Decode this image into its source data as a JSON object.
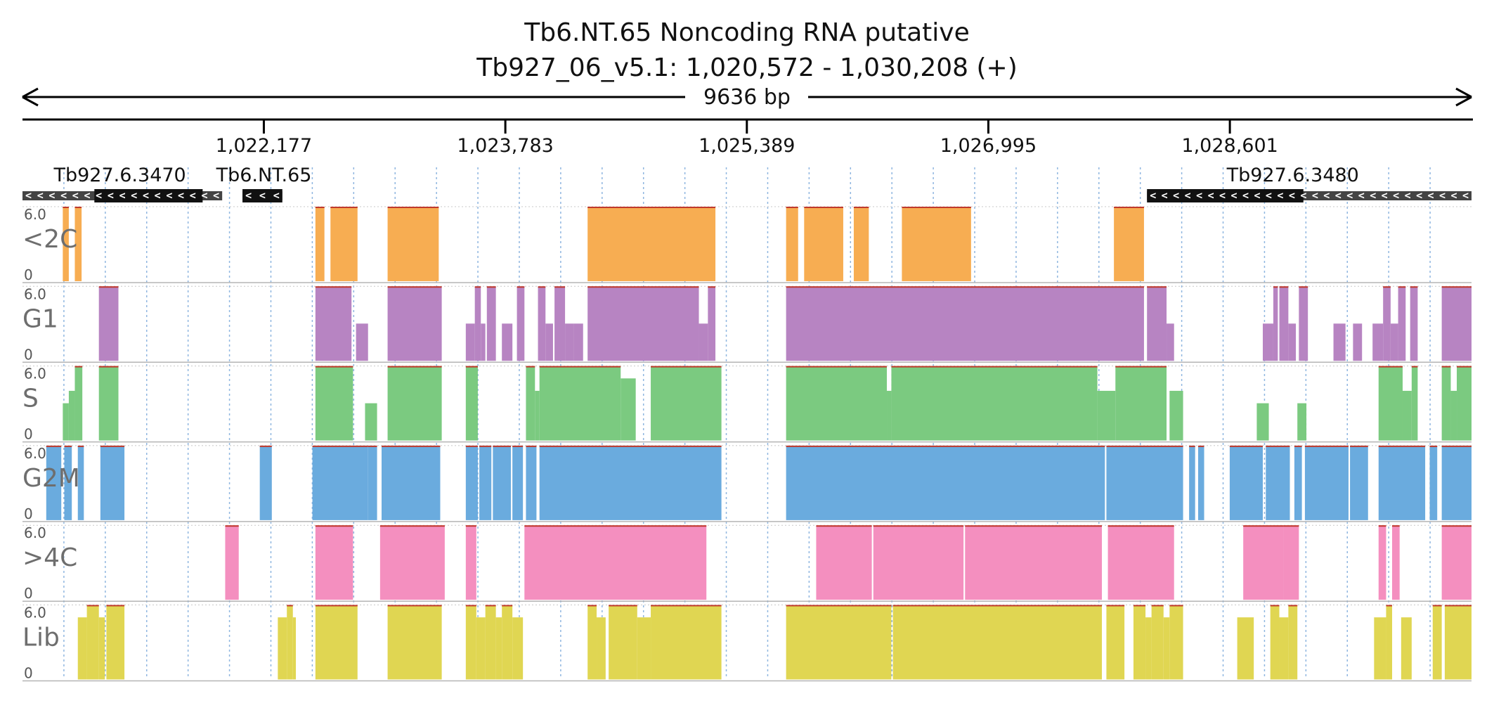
{
  "colors": {
    "<2C": "#f7ad52",
    "G1": "#b784c2",
    "S": "#7bca80",
    "G2M": "#6aabde",
    ">4C": "#f48fbf",
    "Lib": "#e0d652",
    "topline": "#c0392b",
    "gene_fill": "#111111",
    "gene_utr": "#444444"
  },
  "chart_data": {
    "type": "area",
    "title_line1": "Tb6.NT.65  Noncoding RNA  putative",
    "title_line2": "Tb927_06_v5.1: 1,020,572 - 1,030,208 (+)",
    "span_label": "9636 bp",
    "region": {
      "chrom": "Tb927_06_v5.1",
      "start": 1020572,
      "end": 1030208,
      "strand": "+"
    },
    "ticks": [
      {
        "pos": 1022177,
        "label": "1,022,177"
      },
      {
        "pos": 1023783,
        "label": "1,023,783"
      },
      {
        "pos": 1025389,
        "label": "1,025,389"
      },
      {
        "pos": 1026995,
        "label": "1,026,995"
      },
      {
        "pos": 1028601,
        "label": "1,028,601"
      }
    ],
    "genes": [
      {
        "name": "Tb927.6.3470",
        "start": 1020572,
        "end": 1021900,
        "cds_start": 1021050,
        "cds_end": 1021770,
        "strand": "-",
        "label": "Tb927.6.3470",
        "label_pos": 1020780
      },
      {
        "name": "Tb6.NT.65",
        "start": 1022035,
        "end": 1022300,
        "cds_start": 1022035,
        "cds_end": 1022300,
        "strand": "-",
        "label": "Tb6.NT.65",
        "label_pos": 1021860
      },
      {
        "name": "Tb927.6.3480",
        "start": 1028050,
        "end": 1030208,
        "cds_start": 1028050,
        "cds_end": 1029090,
        "strand": "-",
        "label": "Tb927.6.3480",
        "label_pos": 1028580
      }
    ],
    "y_scale": {
      "max_label": "6.0",
      "min_label": "0",
      "ylim": [
        0,
        6
      ]
    },
    "tracks": [
      {
        "name": "<2C",
        "segments": [
          [
            1020840,
            1020880,
            6.0
          ],
          [
            1020920,
            1020965,
            6.0
          ],
          [
            1022520,
            1022580,
            6.0
          ],
          [
            1022620,
            1022800,
            6.0
          ],
          [
            1023000,
            1023340,
            6.0
          ],
          [
            1024330,
            1025180,
            6.0
          ],
          [
            1025650,
            1025730,
            6.0
          ],
          [
            1025770,
            1026030,
            6.0
          ],
          [
            1026100,
            1026200,
            6.0
          ],
          [
            1026420,
            1026880,
            6.0
          ],
          [
            1027830,
            1028030,
            6.0
          ]
        ]
      },
      {
        "name": "G1",
        "segments": [
          [
            1021080,
            1021210,
            6.0
          ],
          [
            1022520,
            1022760,
            6.0
          ],
          [
            1022790,
            1022870,
            3.0
          ],
          [
            1023000,
            1023360,
            6.0
          ],
          [
            1023520,
            1023580,
            3.0
          ],
          [
            1023580,
            1023620,
            6.0
          ],
          [
            1023620,
            1023650,
            3.0
          ],
          [
            1023660,
            1023720,
            6.0
          ],
          [
            1023760,
            1023830,
            3.0
          ],
          [
            1023860,
            1023910,
            6.0
          ],
          [
            1024000,
            1024050,
            6.0
          ],
          [
            1024050,
            1024100,
            3.0
          ],
          [
            1024110,
            1024180,
            6.0
          ],
          [
            1024180,
            1024240,
            3.0
          ],
          [
            1024240,
            1024300,
            3.0
          ],
          [
            1024330,
            1025070,
            6.0
          ],
          [
            1025070,
            1025130,
            3.0
          ],
          [
            1025130,
            1025180,
            6.0
          ],
          [
            1025650,
            1028030,
            6.0
          ],
          [
            1028050,
            1028180,
            6.0
          ],
          [
            1028180,
            1028230,
            3.0
          ],
          [
            1028820,
            1028890,
            3.0
          ],
          [
            1028890,
            1028920,
            6.0
          ],
          [
            1028930,
            1028990,
            6.0
          ],
          [
            1028990,
            1029040,
            3.0
          ],
          [
            1029060,
            1029120,
            6.0
          ],
          [
            1029290,
            1029370,
            3.0
          ],
          [
            1029420,
            1029480,
            3.0
          ],
          [
            1029550,
            1029620,
            3.0
          ],
          [
            1029620,
            1029670,
            6.0
          ],
          [
            1029670,
            1029720,
            3.0
          ],
          [
            1029720,
            1029770,
            6.0
          ],
          [
            1029800,
            1029850,
            6.0
          ],
          [
            1030010,
            1030208,
            6.0
          ]
        ]
      },
      {
        "name": "S",
        "segments": [
          [
            1020840,
            1020880,
            3.0
          ],
          [
            1020880,
            1020920,
            4.0
          ],
          [
            1020920,
            1020970,
            6.0
          ],
          [
            1021080,
            1021210,
            6.0
          ],
          [
            1022520,
            1022770,
            6.0
          ],
          [
            1022850,
            1022930,
            3.0
          ],
          [
            1023000,
            1023360,
            6.0
          ],
          [
            1023520,
            1023600,
            6.0
          ],
          [
            1023920,
            1023980,
            6.0
          ],
          [
            1023980,
            1024010,
            4.0
          ],
          [
            1024010,
            1024550,
            6.0
          ],
          [
            1024550,
            1024650,
            5.0
          ],
          [
            1024750,
            1025220,
            6.0
          ],
          [
            1025650,
            1026320,
            6.0
          ],
          [
            1026320,
            1026350,
            4.0
          ],
          [
            1026350,
            1027720,
            6.0
          ],
          [
            1027720,
            1027840,
            4.0
          ],
          [
            1027840,
            1028180,
            6.0
          ],
          [
            1028200,
            1028290,
            4.0
          ],
          [
            1028780,
            1028860,
            3.0
          ],
          [
            1029050,
            1029110,
            3.0
          ],
          [
            1029590,
            1029750,
            6.0
          ],
          [
            1029750,
            1029810,
            4.0
          ],
          [
            1029810,
            1029850,
            6.0
          ],
          [
            1030010,
            1030070,
            6.0
          ],
          [
            1030070,
            1030110,
            4.0
          ],
          [
            1030110,
            1030208,
            6.0
          ]
        ]
      },
      {
        "name": "G2M",
        "segments": [
          [
            1020730,
            1020830,
            6.0
          ],
          [
            1020850,
            1020900,
            6.0
          ],
          [
            1020940,
            1020980,
            6.0
          ],
          [
            1021090,
            1021250,
            6.0
          ],
          [
            1022150,
            1022230,
            6.0
          ],
          [
            1022500,
            1022870,
            6.0
          ],
          [
            1022870,
            1022930,
            6.0
          ],
          [
            1022960,
            1023350,
            6.0
          ],
          [
            1023520,
            1023600,
            6.0
          ],
          [
            1023610,
            1023690,
            6.0
          ],
          [
            1023700,
            1023820,
            6.0
          ],
          [
            1023830,
            1023900,
            6.0
          ],
          [
            1023920,
            1023990,
            6.0
          ],
          [
            1024010,
            1025220,
            6.0
          ],
          [
            1025650,
            1027770,
            6.0
          ],
          [
            1027780,
            1028290,
            6.0
          ],
          [
            1028330,
            1028370,
            6.0
          ],
          [
            1028390,
            1028430,
            6.0
          ],
          [
            1028600,
            1028820,
            6.0
          ],
          [
            1028840,
            1029000,
            6.0
          ],
          [
            1029030,
            1029080,
            6.0
          ],
          [
            1029100,
            1029390,
            6.0
          ],
          [
            1029400,
            1029520,
            6.0
          ],
          [
            1029590,
            1029900,
            6.0
          ],
          [
            1029930,
            1029980,
            6.0
          ],
          [
            1030010,
            1030208,
            6.0
          ]
        ]
      },
      {
        "name": ">4C",
        "segments": [
          [
            1021920,
            1022010,
            6.0
          ],
          [
            1022520,
            1022770,
            6.0
          ],
          [
            1022950,
            1023380,
            6.0
          ],
          [
            1023520,
            1023590,
            6.0
          ],
          [
            1023910,
            1025120,
            6.0
          ],
          [
            1025850,
            1026220,
            6.0
          ],
          [
            1026230,
            1026830,
            6.0
          ],
          [
            1026840,
            1027750,
            6.0
          ],
          [
            1027790,
            1028230,
            6.0
          ],
          [
            1028690,
            1028960,
            6.0
          ],
          [
            1028960,
            1029060,
            6.0
          ],
          [
            1029590,
            1029640,
            6.0
          ],
          [
            1029680,
            1029730,
            6.0
          ],
          [
            1030010,
            1030208,
            6.0
          ]
        ]
      },
      {
        "name": "Lib",
        "segments": [
          [
            1020940,
            1021000,
            5.0
          ],
          [
            1021000,
            1021080,
            6.0
          ],
          [
            1021080,
            1021120,
            5.0
          ],
          [
            1021130,
            1021250,
            6.0
          ],
          [
            1022270,
            1022330,
            5.0
          ],
          [
            1022330,
            1022370,
            6.0
          ],
          [
            1022370,
            1022390,
            5.0
          ],
          [
            1022520,
            1022800,
            6.0
          ],
          [
            1023000,
            1023360,
            6.0
          ],
          [
            1023520,
            1023590,
            6.0
          ],
          [
            1023590,
            1023650,
            5.0
          ],
          [
            1023650,
            1023720,
            6.0
          ],
          [
            1023720,
            1023760,
            5.0
          ],
          [
            1023760,
            1023830,
            6.0
          ],
          [
            1023830,
            1023900,
            5.0
          ],
          [
            1024330,
            1024390,
            6.0
          ],
          [
            1024390,
            1024450,
            5.0
          ],
          [
            1024470,
            1024660,
            6.0
          ],
          [
            1024660,
            1024750,
            5.0
          ],
          [
            1024750,
            1025220,
            6.0
          ],
          [
            1025650,
            1026350,
            6.0
          ],
          [
            1026360,
            1027750,
            6.0
          ],
          [
            1027780,
            1027900,
            6.0
          ],
          [
            1027960,
            1028040,
            6.0
          ],
          [
            1028040,
            1028080,
            5.0
          ],
          [
            1028080,
            1028160,
            6.0
          ],
          [
            1028160,
            1028200,
            5.0
          ],
          [
            1028200,
            1028290,
            6.0
          ],
          [
            1028650,
            1028760,
            5.0
          ],
          [
            1028870,
            1028930,
            6.0
          ],
          [
            1028930,
            1028990,
            5.0
          ],
          [
            1028990,
            1029050,
            6.0
          ],
          [
            1029560,
            1029640,
            5.0
          ],
          [
            1029640,
            1029680,
            6.0
          ],
          [
            1029740,
            1029810,
            5.0
          ],
          [
            1029950,
            1030010,
            6.0
          ],
          [
            1030030,
            1030208,
            6.0
          ]
        ]
      }
    ]
  }
}
